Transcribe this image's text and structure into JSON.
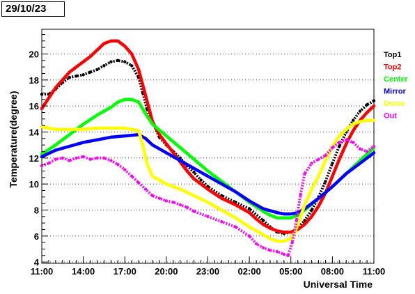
{
  "header": {
    "date_label": "29/10/23"
  },
  "chart_data": {
    "type": "scatter",
    "title": "",
    "xlabel": "Universal Time",
    "ylabel": "Temperature(degree)",
    "x_unit": "hours since 11:00",
    "xlim": [
      0,
      24
    ],
    "ylim": [
      3.9,
      21.9
    ],
    "x_ticks": [
      {
        "x": 0,
        "label": "11:00"
      },
      {
        "x": 3,
        "label": "14:00"
      },
      {
        "x": 6,
        "label": "17:00"
      },
      {
        "x": 9,
        "label": "20:00"
      },
      {
        "x": 12,
        "label": "23:00"
      },
      {
        "x": 15,
        "label": "02:00"
      },
      {
        "x": 18,
        "label": "05:00"
      },
      {
        "x": 21,
        "label": "08:00"
      },
      {
        "x": 24,
        "label": "11:00"
      }
    ],
    "y_ticks": [
      4,
      6,
      8,
      10,
      12,
      14,
      16,
      18,
      20
    ],
    "y_grid": true,
    "legend_position": "right",
    "series": [
      {
        "name": "Top1",
        "color": "#000000",
        "style": "dots",
        "points": [
          [
            0,
            16.9
          ],
          [
            0.5,
            16.9
          ],
          [
            1,
            17.3
          ],
          [
            1.5,
            17.8
          ],
          [
            2,
            18.2
          ],
          [
            2.5,
            18.3
          ],
          [
            3,
            18.4
          ],
          [
            3.5,
            18.6
          ],
          [
            4,
            18.8
          ],
          [
            4.5,
            19.1
          ],
          [
            5,
            19.4
          ],
          [
            5.5,
            19.5
          ],
          [
            6,
            19.4
          ],
          [
            6.5,
            19.1
          ],
          [
            7,
            18.2
          ],
          [
            7.3,
            17.0
          ],
          [
            7.6,
            15.8
          ],
          [
            8,
            14.8
          ],
          [
            8.5,
            13.6
          ],
          [
            9,
            13.0
          ],
          [
            9.5,
            12.5
          ],
          [
            10,
            12.0
          ],
          [
            10.5,
            11.4
          ],
          [
            11,
            10.9
          ],
          [
            11.5,
            10.3
          ],
          [
            12,
            9.8
          ],
          [
            13,
            9.1
          ],
          [
            14,
            8.6
          ],
          [
            15,
            8.1
          ],
          [
            16,
            7.2
          ],
          [
            16.5,
            6.7
          ],
          [
            17,
            6.3
          ],
          [
            17.5,
            6.2
          ],
          [
            18,
            6.3
          ],
          [
            18.5,
            6.6
          ],
          [
            19,
            7.2
          ],
          [
            19.5,
            8.0
          ],
          [
            20,
            9.0
          ],
          [
            20.5,
            10.2
          ],
          [
            21,
            11.6
          ],
          [
            21.5,
            12.9
          ],
          [
            22,
            14.0
          ],
          [
            22.5,
            14.9
          ],
          [
            23,
            15.6
          ],
          [
            23.5,
            16.1
          ],
          [
            24,
            16.4
          ]
        ]
      },
      {
        "name": "Top2",
        "color": "#ff0000",
        "style": "line",
        "points": [
          [
            0,
            15.8
          ],
          [
            0.5,
            16.6
          ],
          [
            1,
            17.4
          ],
          [
            1.5,
            18.0
          ],
          [
            2,
            18.6
          ],
          [
            2.5,
            19.0
          ],
          [
            3,
            19.4
          ],
          [
            3.5,
            19.8
          ],
          [
            4,
            20.3
          ],
          [
            4.5,
            20.8
          ],
          [
            5,
            21.0
          ],
          [
            5.5,
            21.0
          ],
          [
            6,
            20.6
          ],
          [
            6.5,
            20.0
          ],
          [
            7,
            18.8
          ],
          [
            7.5,
            16.8
          ],
          [
            8,
            14.8
          ],
          [
            8.5,
            13.8
          ],
          [
            9,
            13.1
          ],
          [
            9.5,
            12.4
          ],
          [
            10,
            11.7
          ],
          [
            10.5,
            11.0
          ],
          [
            11,
            10.4
          ],
          [
            12,
            9.6
          ],
          [
            13,
            8.9
          ],
          [
            14,
            8.4
          ],
          [
            15,
            7.8
          ],
          [
            15.5,
            7.3
          ],
          [
            16,
            6.9
          ],
          [
            16.5,
            6.6
          ],
          [
            17,
            6.4
          ],
          [
            17.5,
            6.3
          ],
          [
            18,
            6.3
          ],
          [
            18.5,
            6.5
          ],
          [
            19,
            6.9
          ],
          [
            19.5,
            7.5
          ],
          [
            20,
            8.3
          ],
          [
            20.5,
            9.3
          ],
          [
            21,
            10.6
          ],
          [
            21.5,
            11.9
          ],
          [
            22,
            13.1
          ],
          [
            22.5,
            14.1
          ],
          [
            23,
            14.9
          ],
          [
            23.5,
            15.5
          ],
          [
            24,
            16.0
          ]
        ]
      },
      {
        "name": "Center",
        "color": "#00ff00",
        "style": "line",
        "points": [
          [
            0,
            12.3
          ],
          [
            1,
            13.0
          ],
          [
            2,
            13.8
          ],
          [
            3,
            14.6
          ],
          [
            4,
            15.3
          ],
          [
            5,
            15.9
          ],
          [
            5.5,
            16.3
          ],
          [
            6,
            16.5
          ],
          [
            6.5,
            16.5
          ],
          [
            7,
            16.3
          ],
          [
            7.5,
            15.4
          ],
          [
            8,
            14.6
          ],
          [
            9,
            13.7
          ],
          [
            10,
            12.8
          ],
          [
            11,
            11.9
          ],
          [
            12,
            11.0
          ],
          [
            13,
            10.2
          ],
          [
            14,
            9.4
          ],
          [
            15,
            8.6
          ],
          [
            16,
            7.9
          ],
          [
            16.5,
            7.6
          ],
          [
            17,
            7.4
          ],
          [
            17.5,
            7.4
          ],
          [
            18,
            7.4
          ],
          [
            18.5,
            7.6
          ],
          [
            19,
            8.0
          ],
          [
            20,
            8.9
          ],
          [
            21,
            9.8
          ],
          [
            22,
            10.8
          ],
          [
            23,
            11.8
          ],
          [
            24,
            12.8
          ]
        ]
      },
      {
        "name": "Mirror",
        "color": "#0000ff",
        "style": "line",
        "points": [
          [
            0,
            12.1
          ],
          [
            1,
            12.6
          ],
          [
            2,
            12.9
          ],
          [
            3,
            13.2
          ],
          [
            4,
            13.4
          ],
          [
            5,
            13.6
          ],
          [
            6,
            13.7
          ],
          [
            7,
            13.8
          ],
          [
            7.5,
            13.5
          ],
          [
            8,
            13.0
          ],
          [
            9,
            12.4
          ],
          [
            10,
            11.8
          ],
          [
            11,
            11.2
          ],
          [
            12,
            10.6
          ],
          [
            13,
            10.0
          ],
          [
            14,
            9.4
          ],
          [
            15,
            8.7
          ],
          [
            16,
            8.1
          ],
          [
            17,
            7.8
          ],
          [
            17.5,
            7.7
          ],
          [
            18,
            7.7
          ],
          [
            18.5,
            7.8
          ],
          [
            19,
            8.1
          ],
          [
            20,
            8.9
          ],
          [
            21,
            9.8
          ],
          [
            22,
            10.8
          ],
          [
            23,
            11.6
          ],
          [
            24,
            12.4
          ]
        ]
      },
      {
        "name": "Dome",
        "color": "#ffff00",
        "style": "line",
        "points": [
          [
            0,
            14.4
          ],
          [
            1,
            14.2
          ],
          [
            2,
            14.2
          ],
          [
            3,
            14.2
          ],
          [
            4,
            14.3
          ],
          [
            5,
            14.3
          ],
          [
            6,
            14.3
          ],
          [
            7,
            14.1
          ],
          [
            7.3,
            13.0
          ],
          [
            7.6,
            11.6
          ],
          [
            8,
            10.6
          ],
          [
            9,
            10.0
          ],
          [
            10,
            9.6
          ],
          [
            11,
            9.1
          ],
          [
            12,
            8.6
          ],
          [
            13,
            8.0
          ],
          [
            14,
            7.4
          ],
          [
            15,
            6.7
          ],
          [
            16,
            6.1
          ],
          [
            16.5,
            5.8
          ],
          [
            17,
            5.6
          ],
          [
            17.5,
            5.6
          ],
          [
            18,
            5.8
          ],
          [
            18.3,
            6.3
          ],
          [
            18.6,
            7.2
          ],
          [
            19,
            8.4
          ],
          [
            19.5,
            9.6
          ],
          [
            20,
            10.6
          ],
          [
            20.5,
            11.8
          ],
          [
            21,
            12.9
          ],
          [
            21.5,
            13.7
          ],
          [
            22,
            14.2
          ],
          [
            22.5,
            14.6
          ],
          [
            23,
            14.8
          ],
          [
            23.5,
            14.9
          ],
          [
            24,
            14.9
          ]
        ]
      },
      {
        "name": "Out",
        "color": "#ff00ff",
        "style": "dots",
        "points": [
          [
            0,
            11.4
          ],
          [
            0.5,
            11.6
          ],
          [
            1,
            11.9
          ],
          [
            1.5,
            12.0
          ],
          [
            2,
            11.8
          ],
          [
            2.5,
            12.0
          ],
          [
            3,
            12.1
          ],
          [
            3.5,
            11.9
          ],
          [
            4,
            12.0
          ],
          [
            4.5,
            12.0
          ],
          [
            5,
            11.8
          ],
          [
            5.5,
            11.5
          ],
          [
            6,
            11.1
          ],
          [
            6.5,
            10.6
          ],
          [
            7,
            10.1
          ],
          [
            7.5,
            9.6
          ],
          [
            8,
            9.1
          ],
          [
            8.5,
            8.9
          ],
          [
            9,
            8.7
          ],
          [
            9.5,
            8.6
          ],
          [
            10,
            8.4
          ],
          [
            10.5,
            8.2
          ],
          [
            11,
            7.9
          ],
          [
            12,
            7.5
          ],
          [
            13,
            7.1
          ],
          [
            14,
            6.7
          ],
          [
            15,
            6.0
          ],
          [
            15.5,
            5.4
          ],
          [
            16,
            5.1
          ],
          [
            16.5,
            4.9
          ],
          [
            17,
            4.8
          ],
          [
            17.5,
            4.6
          ],
          [
            17.8,
            4.5
          ],
          [
            18.1,
            5.5
          ],
          [
            18.4,
            7.2
          ],
          [
            18.7,
            9.2
          ],
          [
            19,
            10.8
          ],
          [
            19.5,
            11.6
          ],
          [
            20,
            11.9
          ],
          [
            20.5,
            12.2
          ],
          [
            21,
            12.8
          ],
          [
            21.5,
            13.2
          ],
          [
            22,
            13.4
          ],
          [
            22.5,
            13.2
          ],
          [
            23,
            12.7
          ],
          [
            23.5,
            12.5
          ],
          [
            24,
            12.9
          ]
        ]
      }
    ]
  }
}
